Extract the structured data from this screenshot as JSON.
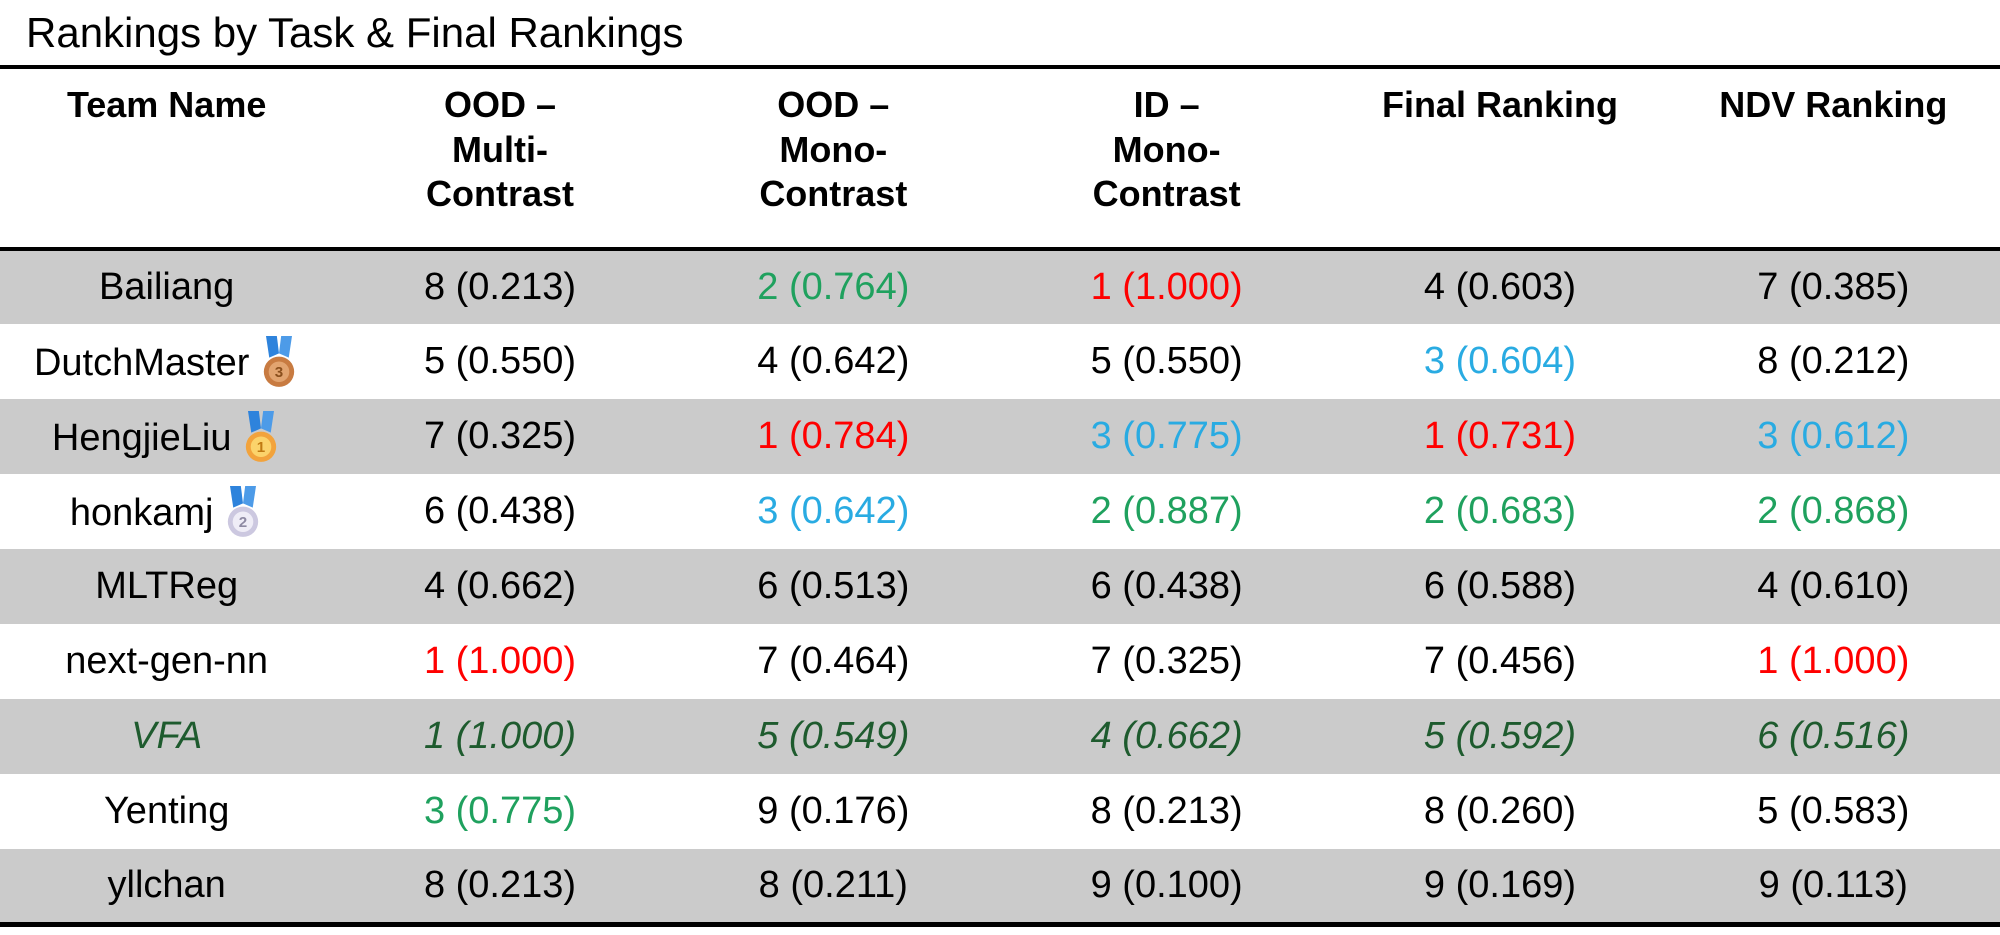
{
  "title": "Rankings by Task & Final Rankings",
  "colors": {
    "black": "#000000",
    "red": "#FF0000",
    "green": "#1FA15E",
    "cyan": "#29ABE2",
    "dark_green": "#1E5B2E",
    "row_shaded_bg": "#CBCBCB",
    "rule": "#000000"
  },
  "medals": {
    "gold": {
      "label": "gold-medal",
      "ribbon_left": "#2E83DC",
      "ribbon_right": "#4D9BE8",
      "circle": "#F2A33C",
      "inner": "#FBD36B",
      "number": "1",
      "number_color": "#C07A12"
    },
    "silver": {
      "label": "silver-medal",
      "ribbon_left": "#2E83DC",
      "ribbon_right": "#4D9BE8",
      "circle": "#CCC8E0",
      "inner": "#EFEDF7",
      "number": "2",
      "number_color": "#8E8AA3"
    },
    "bronze": {
      "label": "bronze-medal",
      "ribbon_left": "#2E83DC",
      "ribbon_right": "#4D9BE8",
      "circle": "#C87B41",
      "inner": "#E2A470",
      "number": "3",
      "number_color": "#8A4F1D"
    }
  },
  "chart_data": {
    "type": "table",
    "title": "Rankings by Task & Final Rankings",
    "columns": [
      {
        "lines": [
          "Team Name"
        ]
      },
      {
        "lines": [
          "OOD –",
          "Multi-",
          "Contrast"
        ]
      },
      {
        "lines": [
          "OOD –",
          "Mono-",
          "Contrast"
        ]
      },
      {
        "lines": [
          "ID –",
          "Mono-",
          "Contrast"
        ]
      },
      {
        "lines": [
          "Final Ranking"
        ]
      },
      {
        "lines": [
          "NDV Ranking"
        ]
      }
    ],
    "rows": [
      {
        "team": "Bailiang",
        "medal": null,
        "style": "normal",
        "shaded": true,
        "values": [
          "8 (0.213)",
          "2 (0.764)",
          "1 (1.000)",
          "4 (0.603)",
          "7 (0.385)"
        ],
        "value_colors": [
          "black",
          "green",
          "red",
          "black",
          "black"
        ],
        "team_color": "black"
      },
      {
        "team": "DutchMaster",
        "medal": "bronze",
        "style": "normal",
        "shaded": false,
        "values": [
          "5 (0.550)",
          "4 (0.642)",
          "5 (0.550)",
          "3 (0.604)",
          "8 (0.212)"
        ],
        "value_colors": [
          "black",
          "black",
          "black",
          "cyan",
          "black"
        ],
        "team_color": "black"
      },
      {
        "team": "HengjieLiu",
        "medal": "gold",
        "style": "normal",
        "shaded": true,
        "values": [
          "7 (0.325)",
          "1 (0.784)",
          "3 (0.775)",
          "1 (0.731)",
          "3 (0.612)"
        ],
        "value_colors": [
          "black",
          "red",
          "cyan",
          "red",
          "cyan"
        ],
        "team_color": "black"
      },
      {
        "team": "honkamj",
        "medal": "silver",
        "style": "normal",
        "shaded": false,
        "values": [
          "6 (0.438)",
          "3 (0.642)",
          "2 (0.887)",
          "2 (0.683)",
          "2 (0.868)"
        ],
        "value_colors": [
          "black",
          "cyan",
          "green",
          "green",
          "green"
        ],
        "team_color": "black"
      },
      {
        "team": "MLTReg",
        "medal": null,
        "style": "normal",
        "shaded": true,
        "values": [
          "4 (0.662)",
          "6 (0.513)",
          "6 (0.438)",
          "6 (0.588)",
          "4 (0.610)"
        ],
        "value_colors": [
          "black",
          "black",
          "black",
          "black",
          "black"
        ],
        "team_color": "black"
      },
      {
        "team": "next-gen-nn",
        "medal": null,
        "style": "normal",
        "shaded": false,
        "values": [
          "1 (1.000)",
          "7 (0.464)",
          "7 (0.325)",
          "7 (0.456)",
          "1 (1.000)"
        ],
        "value_colors": [
          "red",
          "black",
          "black",
          "black",
          "red"
        ],
        "team_color": "black"
      },
      {
        "team": "VFA",
        "medal": null,
        "style": "italic",
        "shaded": true,
        "values": [
          "1 (1.000)",
          "5 (0.549)",
          "4 (0.662)",
          "5 (0.592)",
          "6 (0.516)"
        ],
        "value_colors": [
          "dark_green",
          "dark_green",
          "dark_green",
          "dark_green",
          "dark_green"
        ],
        "team_color": "dark_green"
      },
      {
        "team": "Yenting",
        "medal": null,
        "style": "normal",
        "shaded": false,
        "values": [
          "3 (0.775)",
          "9 (0.176)",
          "8 (0.213)",
          "8 (0.260)",
          "5 (0.583)"
        ],
        "value_colors": [
          "green",
          "black",
          "black",
          "black",
          "black"
        ],
        "team_color": "black"
      },
      {
        "team": "yllchan",
        "medal": null,
        "style": "normal",
        "shaded": true,
        "values": [
          "8 (0.213)",
          "8 (0.211)",
          "9 (0.100)",
          "9 (0.169)",
          "9 (0.113)"
        ],
        "value_colors": [
          "black",
          "black",
          "black",
          "black",
          "black"
        ],
        "team_color": "black"
      }
    ]
  }
}
